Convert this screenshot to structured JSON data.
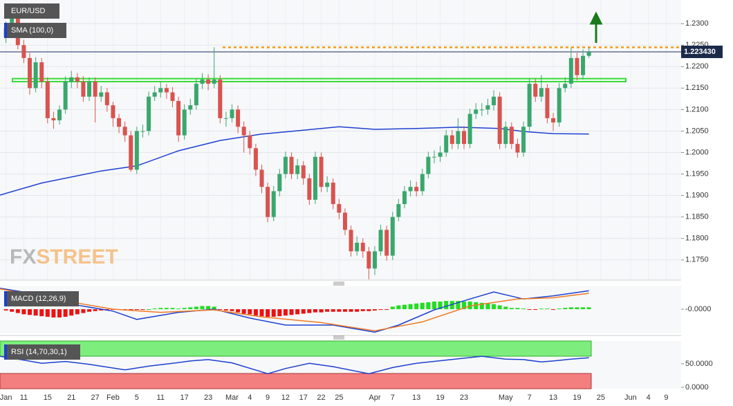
{
  "chart_data": [
    {
      "type": "candlestick",
      "title": "EUR/USD",
      "up_color": "#3aa76d",
      "down_color": "#d9534f",
      "open": [
        1.227,
        1.229,
        1.233,
        1.225,
        1.222,
        1.215,
        1.221,
        1.2165,
        1.208,
        1.2075,
        1.21,
        1.2165,
        1.2175,
        1.2165,
        1.213,
        1.2165,
        1.213,
        1.214,
        1.211,
        1.208,
        1.206,
        1.204,
        1.196,
        1.205,
        1.205,
        1.213,
        1.214,
        1.215,
        1.214,
        1.212,
        1.204,
        1.21,
        1.211,
        1.216,
        1.217,
        1.216,
        1.217,
        1.208,
        1.208,
        1.21,
        1.206,
        1.204,
        1.201,
        1.196,
        1.192,
        1.185,
        1.191,
        1.195,
        1.199,
        1.195,
        1.197,
        1.194,
        1.189,
        1.199,
        1.192,
        1.193,
        1.188,
        1.186,
        1.182,
        1.177,
        1.179,
        1.177,
        1.173,
        1.177,
        1.182,
        1.176,
        1.185,
        1.188,
        1.191,
        1.192,
        1.191,
        1.195,
        1.199,
        1.199,
        1.2,
        1.204,
        1.202,
        1.205,
        1.202,
        1.209,
        1.21,
        1.21,
        1.211,
        1.213,
        1.202,
        1.206,
        1.202,
        1.2,
        1.206,
        1.216,
        1.213,
        1.215,
        1.208,
        1.207,
        1.215,
        1.216,
        1.222,
        1.218,
        1.2225
      ],
      "high": [
        1.2305,
        1.2345,
        1.234,
        1.2262,
        1.2232,
        1.2222,
        1.222,
        1.2175,
        1.2095,
        1.211,
        1.2177,
        1.219,
        1.2185,
        1.2178,
        1.2175,
        1.2175,
        1.2155,
        1.215,
        1.2118,
        1.209,
        1.2072,
        1.205,
        1.206,
        1.2065,
        1.2142,
        1.2155,
        1.2165,
        1.216,
        1.2152,
        1.213,
        1.2112,
        1.2125,
        1.2172,
        1.2185,
        1.2182,
        1.2245,
        1.218,
        1.2095,
        1.2112,
        1.211,
        1.2072,
        1.205,
        1.202,
        1.1972,
        1.193,
        1.1922,
        1.1962,
        1.2002,
        1.2,
        1.1985,
        1.198,
        1.195,
        1.2002,
        1.2,
        1.1945,
        1.194,
        1.1892,
        1.187,
        1.183,
        1.1805,
        1.18,
        1.178,
        1.1782,
        1.1832,
        1.183,
        1.1862,
        1.1892,
        1.1922,
        1.1935,
        1.1932,
        1.1962,
        1.2002,
        1.2005,
        1.2015,
        1.2052,
        1.2052,
        1.208,
        1.2062,
        1.2102,
        1.2115,
        1.2115,
        1.2125,
        1.2145,
        1.214,
        1.2072,
        1.207,
        1.2032,
        1.2072,
        1.2172,
        1.2172,
        1.218,
        1.216,
        1.2092,
        1.2162,
        1.2175,
        1.2245,
        1.2232,
        1.224,
        1.2245
      ],
      "low": [
        1.2255,
        1.228,
        1.224,
        1.2208,
        1.2135,
        1.214,
        1.215,
        1.2068,
        1.2055,
        1.2065,
        1.209,
        1.215,
        1.215,
        1.2118,
        1.212,
        1.207,
        1.2118,
        1.2095,
        1.206,
        1.2045,
        1.2025,
        1.1955,
        1.195,
        1.2035,
        1.204,
        1.212,
        1.2128,
        1.2125,
        1.2105,
        1.2025,
        1.203,
        1.2088,
        1.21,
        1.2148,
        1.2145,
        1.215,
        1.2068,
        1.206,
        1.207,
        1.2045,
        1.2,
        1.1995,
        1.1945,
        1.1905,
        1.1838,
        1.184,
        1.1898,
        1.194,
        1.1938,
        1.1938,
        1.1925,
        1.1878,
        1.188,
        1.1908,
        1.1908,
        1.1868,
        1.1845,
        1.1808,
        1.1758,
        1.176,
        1.1755,
        1.1705,
        1.1715,
        1.176,
        1.1748,
        1.175,
        1.184,
        1.187,
        1.1898,
        1.1898,
        1.19,
        1.194,
        1.1975,
        1.1978,
        1.199,
        1.2008,
        1.2008,
        1.2008,
        1.201,
        1.2078,
        1.2085,
        1.2088,
        1.2098,
        1.2008,
        1.201,
        1.2008,
        1.1988,
        1.199,
        1.205,
        1.2118,
        1.2118,
        1.2068,
        1.205,
        1.206,
        1.214,
        1.215,
        1.2168,
        1.217,
        1.222
      ],
      "close": [
        1.229,
        1.233,
        1.225,
        1.222,
        1.215,
        1.221,
        1.2165,
        1.208,
        1.2075,
        1.21,
        1.2165,
        1.2175,
        1.2165,
        1.213,
        1.2165,
        1.213,
        1.214,
        1.211,
        1.208,
        1.206,
        1.204,
        1.196,
        1.205,
        1.205,
        1.213,
        1.214,
        1.215,
        1.214,
        1.212,
        1.204,
        1.21,
        1.211,
        1.216,
        1.217,
        1.216,
        1.217,
        1.208,
        1.208,
        1.21,
        1.206,
        1.204,
        1.201,
        1.196,
        1.192,
        1.185,
        1.191,
        1.195,
        1.199,
        1.195,
        1.197,
        1.194,
        1.189,
        1.199,
        1.192,
        1.193,
        1.188,
        1.186,
        1.182,
        1.177,
        1.179,
        1.177,
        1.173,
        1.177,
        1.182,
        1.176,
        1.185,
        1.188,
        1.191,
        1.192,
        1.191,
        1.195,
        1.199,
        1.199,
        1.2,
        1.204,
        1.202,
        1.205,
        1.202,
        1.209,
        1.21,
        1.21,
        1.211,
        1.213,
        1.202,
        1.206,
        1.202,
        1.2,
        1.206,
        1.216,
        1.213,
        1.215,
        1.208,
        1.207,
        1.215,
        1.216,
        1.222,
        1.218,
        1.2225,
        1.2234
      ],
      "sma": {
        "name": "SMA (100,0)",
        "color": "#1c3fd0",
        "x": [
          -1,
          6,
          16,
          22,
          29,
          36,
          43,
          50,
          56,
          62,
          69,
          76,
          83,
          87,
          92,
          98
        ],
        "values": [
          1.1901,
          1.1929,
          1.1957,
          1.1969,
          1.2004,
          1.2028,
          1.2043,
          1.2052,
          1.206,
          1.2054,
          1.2056,
          1.2059,
          1.2056,
          1.2049,
          1.2044,
          1.2043
        ]
      },
      "resistance_level": 1.2245,
      "resistance_color": "#f39c12",
      "support_zone": [
        1.2165,
        1.2172
      ],
      "support_color": "#33dd33",
      "last_price": {
        "value": 1.22343,
        "label": "1.223430"
      },
      "watermark": [
        "FX",
        "STREET"
      ],
      "xlim": [
        -1,
        113.5
      ],
      "ylim": [
        1.1703,
        1.2355
      ],
      "yticks": [
        {
          "value": 1.23,
          "label": "1.2300"
        },
        {
          "value": 1.225,
          "label": "1.2250"
        },
        {
          "value": 1.22,
          "label": "1.2200"
        },
        {
          "value": 1.215,
          "label": "1.2150"
        },
        {
          "value": 1.21,
          "label": "1.2100"
        },
        {
          "value": 1.205,
          "label": "1.2050"
        },
        {
          "value": 1.2,
          "label": "1.2000"
        },
        {
          "value": 1.195,
          "label": "1.1950"
        },
        {
          "value": 1.19,
          "label": "1.1900"
        },
        {
          "value": 1.185,
          "label": "1.1850"
        },
        {
          "value": 1.18,
          "label": "1.1800"
        },
        {
          "value": 1.175,
          "label": "1.1750"
        }
      ],
      "xticks": [
        {
          "value": 0,
          "label": "Jan"
        },
        {
          "value": 3,
          "label": "11"
        },
        {
          "value": 7,
          "label": "15"
        },
        {
          "value": 11,
          "label": "21"
        },
        {
          "value": 15,
          "label": "27"
        },
        {
          "value": 18,
          "label": "Feb"
        },
        {
          "value": 22,
          "label": "5"
        },
        {
          "value": 26,
          "label": "11"
        },
        {
          "value": 30,
          "label": "17"
        },
        {
          "value": 34,
          "label": "23"
        },
        {
          "value": 38,
          "label": "Mar"
        },
        {
          "value": 41,
          "label": "4"
        },
        {
          "value": 44,
          "label": "9"
        },
        {
          "value": 47,
          "label": "12"
        },
        {
          "value": 50,
          "label": "17"
        },
        {
          "value": 53,
          "label": "22"
        },
        {
          "value": 56,
          "label": "25"
        },
        {
          "value": 62,
          "label": "Apr"
        },
        {
          "value": 65,
          "label": "7"
        },
        {
          "value": 69,
          "label": "13"
        },
        {
          "value": 73,
          "label": "19"
        },
        {
          "value": 77,
          "label": "23"
        },
        {
          "value": 84,
          "label": "May"
        },
        {
          "value": 88,
          "label": "7"
        },
        {
          "value": 92,
          "label": "13"
        },
        {
          "value": 96,
          "label": "19"
        },
        {
          "value": 100,
          "label": "25"
        },
        {
          "value": 105,
          "label": "Jun"
        },
        {
          "value": 108,
          "label": "4"
        },
        {
          "value": 111,
          "label": "9"
        }
      ],
      "grid": true
    },
    {
      "type": "macd",
      "title": "MACD (12,26,9)",
      "up_color": "#22dd22",
      "down_color": "#ee1111",
      "histogram": [
        -0.0002,
        -0.0004,
        -0.0006,
        -0.0008,
        -0.0009,
        -0.001,
        -0.0011,
        -0.0012,
        -0.0013,
        -0.0013,
        -0.0012,
        -0.001,
        -0.0008,
        -0.0006,
        -0.0004,
        -0.0003,
        -0.0002,
        -0.0002,
        -0.0001,
        -0.0001,
        -0.0001,
        -0.0002,
        -0.0001,
        -0.0001,
        0,
        0.0001,
        0.0002,
        0.0002,
        0.0002,
        0.0001,
        0.0002,
        0.0003,
        0.0004,
        0.0005,
        0.0005,
        0.0004,
        -0.0001,
        -0.0002,
        -0.0003,
        -0.0005,
        -0.0007,
        -0.0008,
        -0.001,
        -0.0011,
        -0.0012,
        -0.0012,
        -0.0011,
        -0.001,
        -0.0009,
        -0.0008,
        -0.0007,
        -0.0006,
        -0.0005,
        -0.0005,
        -0.0004,
        -0.0004,
        -0.0004,
        -0.0004,
        -0.0004,
        -0.0004,
        -0.0003,
        -0.0003,
        -0.0002,
        -0.0001,
        -0.0001,
        0.0004,
        0.0006,
        0.0007,
        0.0008,
        0.0009,
        0.001,
        0.0011,
        0.0012,
        0.0012,
        0.0013,
        0.0013,
        0.0013,
        0.0012,
        0.0012,
        0.0011,
        0.001,
        0.0009,
        0.0008,
        0.0006,
        0.0004,
        0.0002,
        0.0002,
        0.0001,
        -0.0001,
        -0.0001,
        0.0001,
        0.0001,
        -0.0001,
        0.0001,
        0.0002,
        0.0003,
        0.0003,
        0.0003,
        0.0003
      ],
      "lines": [
        {
          "color": "#1c3fd0",
          "x": [
            -1,
            5,
            11,
            18,
            22,
            29,
            35,
            41,
            47,
            55,
            62,
            66,
            72,
            78,
            82,
            87,
            92,
            98
          ],
          "values": [
            0.0033,
            0.0024,
            0.0008,
            -0.0003,
            -0.0016,
            -0.0005,
            0,
            -0.0014,
            -0.0025,
            -0.0025,
            -0.0036,
            -0.0025,
            -0.0001,
            0.0016,
            0.0027,
            0.0016,
            0.0021,
            0.0029
          ]
        },
        {
          "color": "#f07820",
          "x": [
            -1,
            8,
            18,
            26,
            35,
            43,
            53,
            62,
            70,
            78,
            86,
            92,
            98
          ],
          "values": [
            0.0032,
            0.0016,
            0,
            -0.0005,
            -0.0001,
            -0.0012,
            -0.0021,
            -0.0034,
            -0.002,
            0.0005,
            0.0016,
            0.0018,
            0.0025
          ]
        }
      ],
      "ylim": [
        -0.0038,
        0.0037
      ],
      "yticks": [
        {
          "value": 0,
          "label": "-0.0000"
        }
      ]
    },
    {
      "type": "rsi",
      "title": "RSI (14,70,30,1)",
      "line": {
        "color": "#1c3fd0",
        "x": [
          -1,
          3,
          6,
          10,
          14,
          20,
          24,
          28,
          31,
          34,
          38,
          44,
          47,
          51,
          55,
          61,
          65,
          69,
          74,
          80,
          84,
          87,
          90,
          92,
          95,
          98
        ],
        "values": [
          66,
          58,
          51,
          55,
          49,
          37,
          45,
          51,
          56,
          59,
          52,
          29,
          40,
          51,
          44,
          29,
          42,
          51,
          58,
          66,
          60,
          59,
          54,
          56,
          60,
          63
        ]
      },
      "ylim": [
        0,
        100
      ],
      "yticks": [
        {
          "value": 50,
          "label": "50.0000"
        },
        {
          "value": 0,
          "label": "0.0000"
        }
      ]
    }
  ]
}
